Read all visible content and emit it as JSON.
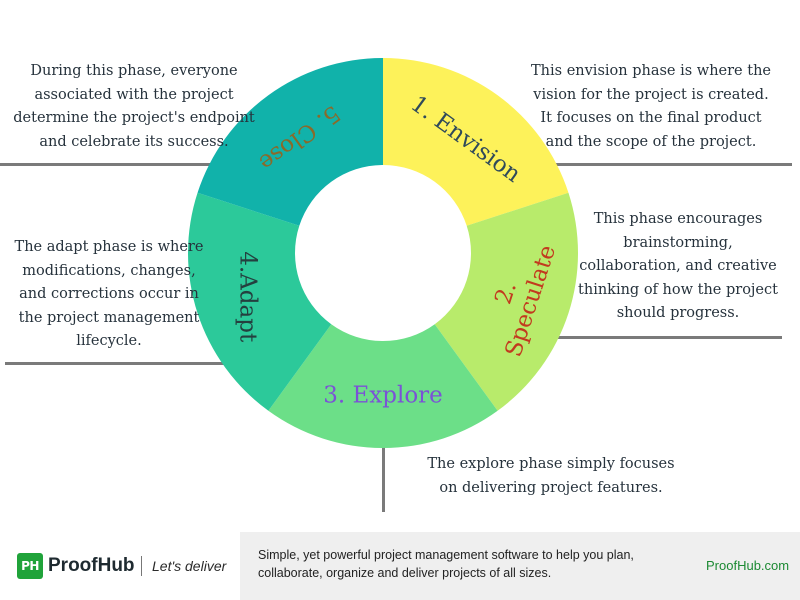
{
  "diagram": {
    "segments": [
      {
        "label": "1. Envision",
        "color": "#fdf25a",
        "text_color": "#2f4a5a"
      },
      {
        "label": "2.\nSpeculate",
        "color": "#b8eb6b",
        "text_color": "#c23a1e"
      },
      {
        "label": "3. Explore",
        "color": "#6cdf88",
        "text_color": "#7b52d6"
      },
      {
        "label": "4.Adapt",
        "color": "#2cc99a",
        "text_color": "#24403f"
      },
      {
        "label": "5. Close",
        "color": "#11b2aa",
        "text_color": "#8a6a2a"
      }
    ],
    "descriptions": {
      "close": "During this phase, everyone\nassociated with the project\ndetermine the project's endpoint\nand celebrate its success.",
      "envision": "This envision phase is where the\nvision for the project is created.\nIt focuses on the final product\nand the scope of the project.",
      "speculate": "This phase encourages\nbrainstorming,\ncollaboration, and creative\nthinking of how the project\nshould progress.",
      "adapt": "The adapt phase is where\nmodifications, changes,\nand corrections occur in\nthe project management\nlifecycle.",
      "explore": "The explore phase simply focuses\non delivering project features."
    }
  },
  "footer": {
    "logo_mark": "PH",
    "brand": "ProofHub",
    "tagline": "Let's deliver",
    "description": "Simple, yet powerful project management software to help you plan,\ncollaborate, organize and deliver projects of all sizes.",
    "link": "ProofHub.com",
    "brand_color": "#20a33a"
  }
}
